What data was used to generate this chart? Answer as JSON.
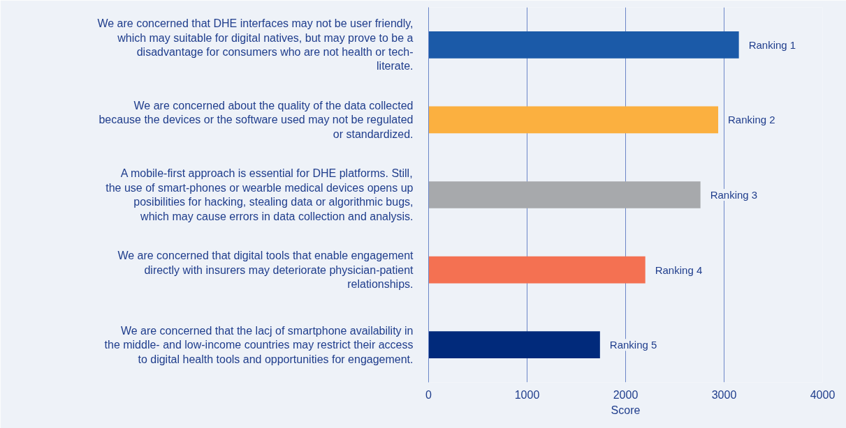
{
  "chart_data": {
    "type": "bar",
    "orientation": "horizontal",
    "xlabel": "Score",
    "categories": [
      "We are concerned that DHE interfaces may not be user friendly, which may suitable for digital natives, but may prove to be a disadvantage for consumers who are not health or tech-literate.",
      "We are concerned about the quality of the data collected because the devices or the software used may not be regulated or standardized.",
      "A mobile-first approach is essential for DHE platforms. Still, the use of smart-phones or wearble medical devices opens up posibilities for hacking, stealing data or algorithmic bugs, which may cause errors in data collection and analysis.",
      "We are concerned that digital tools that enable engagement directly with insurers may deteriorate physician-patient relationships.",
      "We are concerned that the lacj of smartphone availability in the middle- and low-income countries may restrict their access to digital health tools and opportunities for engagement."
    ],
    "values": [
      3150,
      2940,
      2760,
      2200,
      1740
    ],
    "colors": [
      "#1b5aa8",
      "#fbb040",
      "#a7a9ac",
      "#f47152",
      "#012a7b"
    ],
    "value_labels": [
      "Ranking 1",
      "Ranking 2",
      "Ranking 3",
      "Ranking 4",
      "Ranking 5"
    ],
    "xlim": [
      0,
      4000
    ],
    "xticks": [
      0,
      1000,
      2000,
      3000,
      4000
    ],
    "grid": "x"
  }
}
